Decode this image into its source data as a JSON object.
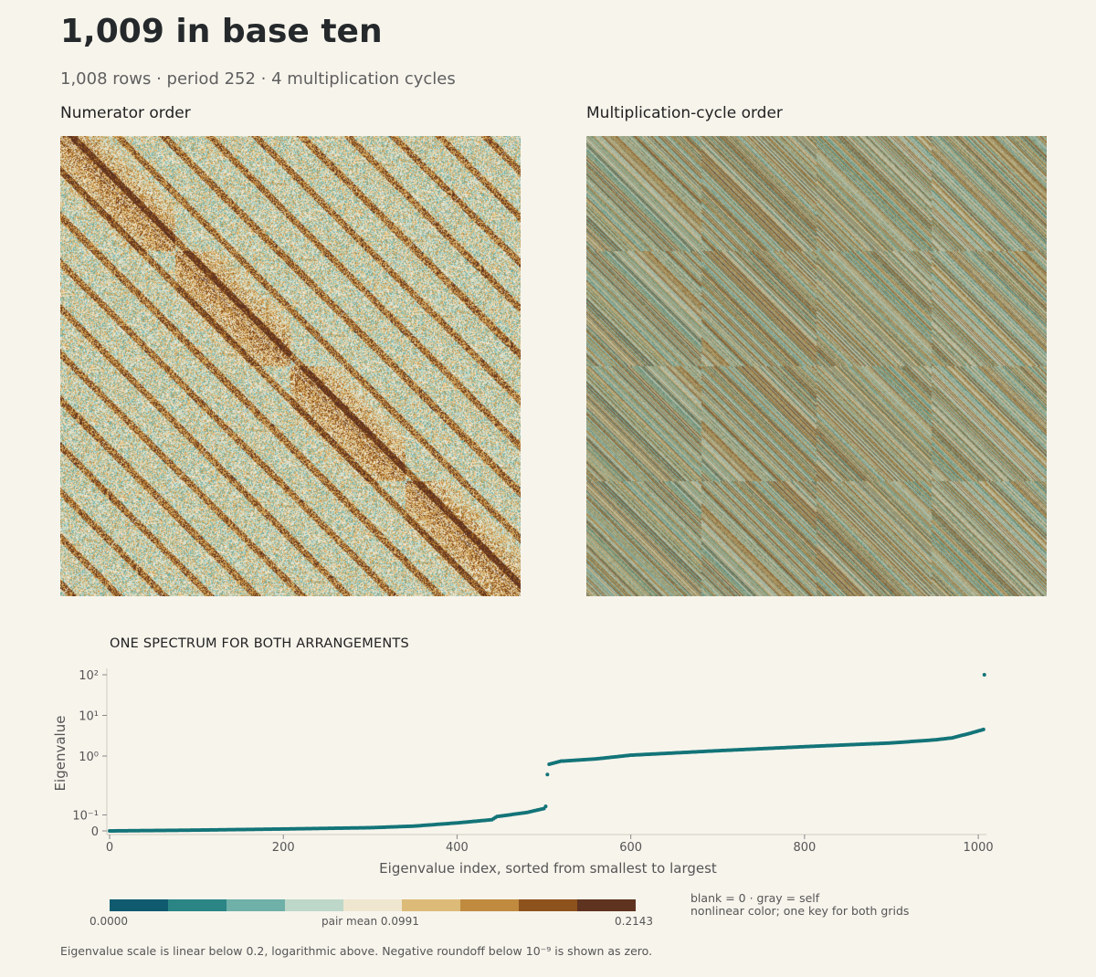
{
  "header": {
    "title": "1,009 in base ten",
    "subtitle": "1,008 rows  ·  period 252  ·  4 multiplication cycles"
  },
  "panels": {
    "left_label": "Numerator order",
    "right_label": "Multiplication-cycle order"
  },
  "spectrum": {
    "section_title": "ONE SPECTRUM FOR BOTH ARRANGEMENTS"
  },
  "chart_data": [
    {
      "type": "heatmap",
      "title": "Numerator order",
      "rows": 1008,
      "cols": 1008,
      "diagonal": "self (gray)",
      "block_count": 4,
      "description_pattern": "textured field with orange banded diagonal blocks"
    },
    {
      "type": "heatmap",
      "title": "Multiplication-cycle order",
      "rows": 1008,
      "cols": 1008,
      "block_grid": [
        4,
        4
      ],
      "description_pattern": "4x4 block grid of diagonal stripes"
    },
    {
      "type": "scatter",
      "title": "ONE SPECTRUM FOR BOTH ARRANGEMENTS",
      "xlabel": "Eigenvalue index, sorted from smallest to largest",
      "ylabel": "Eigenvalue",
      "xlim": [
        0,
        1008
      ],
      "x_ticks": [
        "0",
        "200",
        "400",
        "600",
        "800",
        "1000"
      ],
      "y_tick_labels": [
        "0",
        "10⁻¹",
        "10⁰",
        "10¹",
        "10²"
      ],
      "y_scale": "symlog (linear below 0.2, log above)",
      "color": "#137478",
      "key_points": [
        {
          "x": 0,
          "y": 0.0
        },
        {
          "x": 100,
          "y": 0.005
        },
        {
          "x": 200,
          "y": 0.012
        },
        {
          "x": 300,
          "y": 0.02
        },
        {
          "x": 350,
          "y": 0.03
        },
        {
          "x": 400,
          "y": 0.05
        },
        {
          "x": 440,
          "y": 0.07
        },
        {
          "x": 446,
          "y": 0.09
        },
        {
          "x": 480,
          "y": 0.115
        },
        {
          "x": 500,
          "y": 0.14
        },
        {
          "x": 503,
          "y": 0.16
        },
        {
          "x": 504,
          "y": 0.35
        },
        {
          "x": 505,
          "y": 0.62
        },
        {
          "x": 520,
          "y": 0.75
        },
        {
          "x": 560,
          "y": 0.85
        },
        {
          "x": 600,
          "y": 1.05
        },
        {
          "x": 700,
          "y": 1.35
        },
        {
          "x": 800,
          "y": 1.7
        },
        {
          "x": 900,
          "y": 2.1
        },
        {
          "x": 950,
          "y": 2.5
        },
        {
          "x": 970,
          "y": 2.8
        },
        {
          "x": 990,
          "y": 3.6
        },
        {
          "x": 1006,
          "y": 4.5
        },
        {
          "x": 1007,
          "y": 100
        }
      ]
    }
  ],
  "legend": {
    "colors": [
      "#0f5a6e",
      "#2b8585",
      "#6fb0a8",
      "#bdd7c9",
      "#efe6d0",
      "#dcbb79",
      "#c08b3f",
      "#8e521d",
      "#5e3320"
    ],
    "min_label": "0.0000",
    "mid_label": "pair mean 0.0991",
    "max_label": "0.2143",
    "note_line1": "blank = 0 · gray = self",
    "note_line2": "nonlinear color; one key for both grids"
  },
  "footnote": "Eigenvalue scale is linear below 0.2, logarithmic above. Negative roundoff below 10⁻⁹ is shown as zero."
}
